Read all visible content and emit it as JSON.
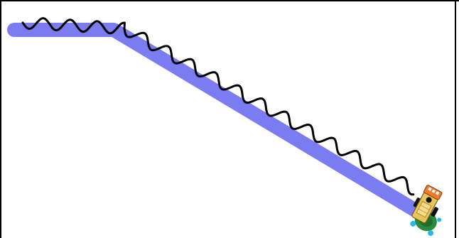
{
  "scene": {
    "background_color": "#ffffff",
    "frame_color": "#000000",
    "target_path": {
      "color": "#7b7bf2"
    },
    "trail": {
      "color": "#000000"
    },
    "robot": {
      "icon": "line-follower-robot-icon",
      "body_color": "#e6c55a",
      "sensor_color": "#f07a2a",
      "wheel_color": "#111111",
      "base_color": "#2a8c3a",
      "accent_color": "#2ab8e6"
    }
  }
}
